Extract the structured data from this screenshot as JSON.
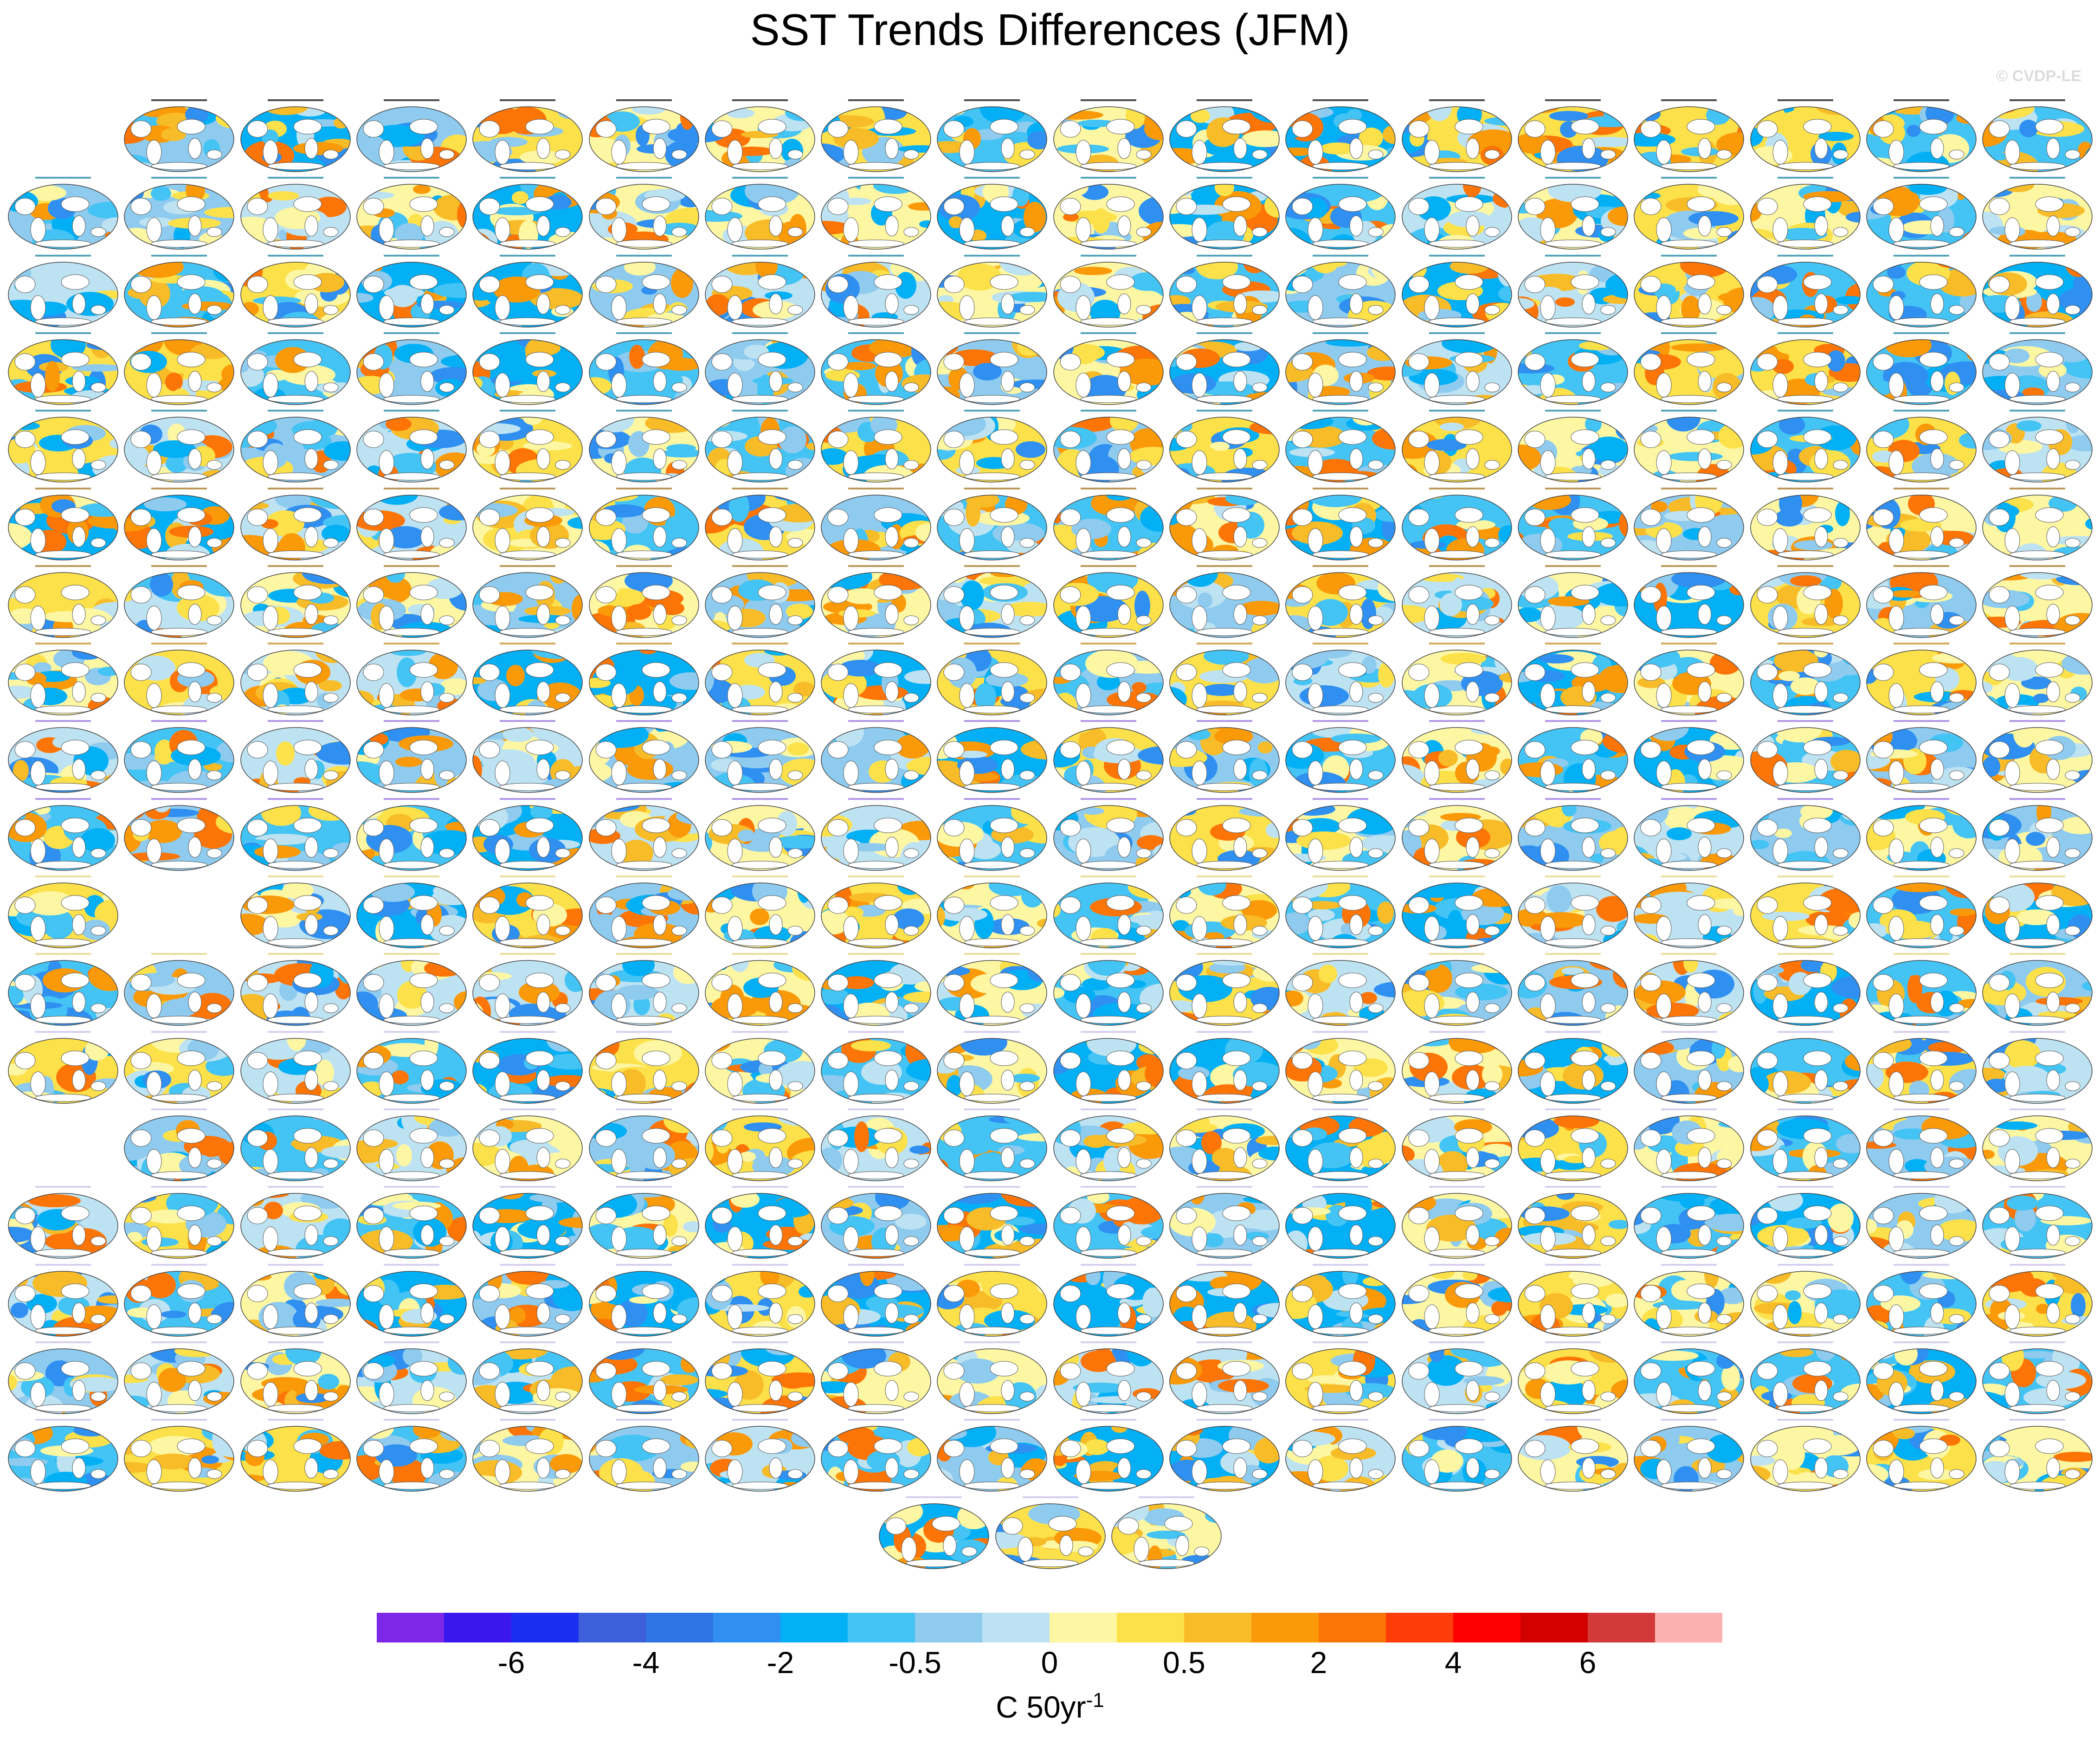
{
  "title": "SST Trends Differences (JFM)",
  "watermark": "© CVDP-LE",
  "colorbar": {
    "colors": [
      "#7d27e8",
      "#3a17ed",
      "#1a2ef0",
      "#3d5fd9",
      "#2f74e6",
      "#2f90f2",
      "#04b0f5",
      "#44c4f5",
      "#8ecbef",
      "#bde2f2",
      "#fdf7a3",
      "#fde14a",
      "#f8bc28",
      "#fb9a09",
      "#fd7506",
      "#fb3c09",
      "#fd0000",
      "#d20000",
      "#d23a3a",
      "#fcb1b1"
    ],
    "labels": [
      "-6",
      "-4",
      "-2",
      "-0.5",
      "0",
      "0.5",
      "2",
      "4",
      "6"
    ],
    "units": "C 50yr",
    "units_exponent": "-1"
  },
  "panels": {
    "rows": [
      {
        "cols": [
          1,
          2,
          3,
          4,
          5,
          6,
          7,
          8,
          9,
          10,
          11,
          12,
          13,
          14,
          15,
          16,
          17
        ]
      },
      {
        "cols": [
          0,
          1,
          2,
          3,
          4,
          5,
          6,
          7,
          8,
          9,
          10,
          11,
          12,
          13,
          14,
          15,
          16,
          17
        ]
      },
      {
        "cols": [
          0,
          1,
          2,
          3,
          4,
          5,
          6,
          7,
          8,
          9,
          10,
          11,
          12,
          13,
          14,
          15,
          16,
          17
        ]
      },
      {
        "cols": [
          0,
          1,
          2,
          3,
          4,
          5,
          6,
          7,
          8,
          9,
          10,
          11,
          12,
          13,
          14,
          15,
          16,
          17
        ]
      },
      {
        "cols": [
          0,
          1,
          2,
          3,
          4,
          5,
          6,
          7,
          8,
          9,
          10,
          11,
          12,
          13,
          14,
          15,
          16,
          17
        ]
      },
      {
        "cols": [
          0,
          1,
          2,
          3,
          4,
          5,
          6,
          7,
          8,
          9,
          10,
          11,
          12,
          13,
          14,
          15,
          16,
          17
        ]
      },
      {
        "cols": [
          0,
          1,
          2,
          3,
          4,
          5,
          6,
          7,
          8,
          9,
          10,
          11,
          12,
          13,
          14,
          15,
          16,
          17
        ]
      },
      {
        "cols": [
          0,
          1,
          2,
          3,
          4,
          5,
          6,
          7,
          8,
          9,
          10,
          11,
          12,
          13,
          14,
          15,
          16,
          17
        ]
      },
      {
        "cols": [
          0,
          1,
          2,
          3,
          4,
          5,
          6,
          7,
          8,
          9,
          10,
          11,
          12,
          13,
          14,
          15,
          16,
          17
        ]
      },
      {
        "cols": [
          0,
          1,
          2,
          3,
          4,
          5,
          6,
          7,
          8,
          9,
          10,
          11,
          12,
          13,
          14,
          15,
          16,
          17
        ]
      },
      {
        "cols": [
          0,
          2,
          3,
          4,
          5,
          6,
          7,
          8,
          9,
          10,
          11,
          12,
          13,
          14,
          15,
          16,
          17
        ]
      },
      {
        "cols": [
          0,
          1,
          2,
          3,
          4,
          5,
          6,
          7,
          8,
          9,
          10,
          11,
          12,
          13,
          14,
          15,
          16,
          17
        ]
      },
      {
        "cols": [
          0,
          1,
          2,
          3,
          4,
          5,
          6,
          7,
          8,
          9,
          10,
          11,
          12,
          13,
          14,
          15,
          16,
          17
        ]
      },
      {
        "cols": [
          1,
          2,
          3,
          4,
          5,
          6,
          7,
          8,
          9,
          10,
          11,
          12,
          13,
          14,
          15,
          16,
          17
        ]
      },
      {
        "cols": [
          0,
          1,
          2,
          3,
          4,
          5,
          6,
          7,
          8,
          9,
          10,
          11,
          12,
          13,
          14,
          15,
          16,
          17
        ]
      },
      {
        "cols": [
          0,
          1,
          2,
          3,
          4,
          5,
          6,
          7,
          8,
          9,
          10,
          11,
          12,
          13,
          14,
          15,
          16,
          17
        ]
      },
      {
        "cols": [
          0,
          1,
          2,
          3,
          4,
          5,
          6,
          7,
          8,
          9,
          10,
          11,
          12,
          13,
          14,
          15,
          16,
          17
        ]
      },
      {
        "cols": [
          0,
          1,
          2,
          3,
          4,
          5,
          6,
          7,
          8,
          9,
          10,
          11,
          12,
          13,
          14,
          15,
          16,
          17
        ]
      },
      {
        "cols": [
          7.5,
          8.5,
          9.5
        ]
      }
    ],
    "label_colors": [
      "#000000",
      "#0a7fa0",
      "#0a7fa0",
      "#0a7fa0",
      "#0a7fa0",
      "#a06b10",
      "#a06b10",
      "#c4820c",
      "#8f6ad9",
      "#8f6ad9",
      "#e0d070",
      "#e0d070",
      "#c8b8e8"
    ]
  }
}
